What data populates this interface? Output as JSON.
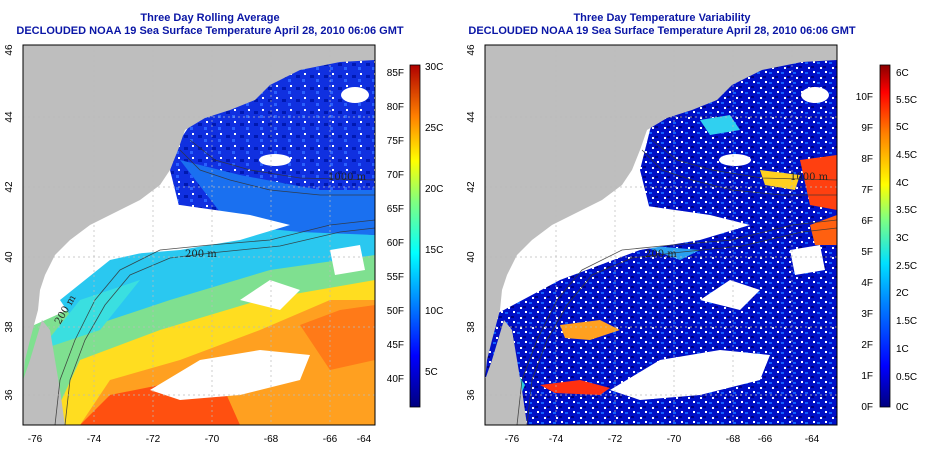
{
  "panels": [
    {
      "title_line1": "Three Day Rolling Average",
      "title_line2": "DECLOUDED NOAA 19 Sea Surface Temperature April 28, 2010 06:06 GMT",
      "x_ticks": [
        "-76",
        "-74",
        "-72",
        "-70",
        "-68",
        "-66",
        "-64"
      ],
      "y_ticks": [
        "36",
        "38",
        "40",
        "42",
        "44",
        "46"
      ],
      "contour_labels": [
        "200 m",
        "1000 m",
        "200 m"
      ],
      "colorbar_left_labels": [
        "85F",
        "80F",
        "75F",
        "70F",
        "65F",
        "60F",
        "55F",
        "50F",
        "45F",
        "40F"
      ],
      "colorbar_right_labels": [
        "30C",
        "25C",
        "20C",
        "15C",
        "10C",
        "5C"
      ]
    },
    {
      "title_line1": "Three Day Temperature Variability",
      "title_line2": "DECLOUDED NOAA 19 Sea Surface Temperature April 28, 2010 06:06 GMT",
      "x_ticks": [
        "-76",
        "-74",
        "-72",
        "-70",
        "-68",
        "-66",
        "-64"
      ],
      "y_ticks": [
        "36",
        "38",
        "40",
        "42",
        "44",
        "46"
      ],
      "contour_labels": [
        "200 m",
        "1000 m"
      ],
      "colorbar_left_labels": [
        "10F",
        "9F",
        "8F",
        "7F",
        "6F",
        "5F",
        "4F",
        "3F",
        "2F",
        "1F",
        "0F"
      ],
      "colorbar_right_labels": [
        "6C",
        "5.5C",
        "5C",
        "4.5C",
        "4C",
        "3.5C",
        "3C",
        "2.5C",
        "2C",
        "1.5C",
        "1C",
        "0.5C",
        "0C"
      ]
    }
  ],
  "colors": {
    "title": "#0a16a6",
    "land": "#bebebe",
    "cloud_mask": "#ffffff",
    "grid": "#999999"
  }
}
